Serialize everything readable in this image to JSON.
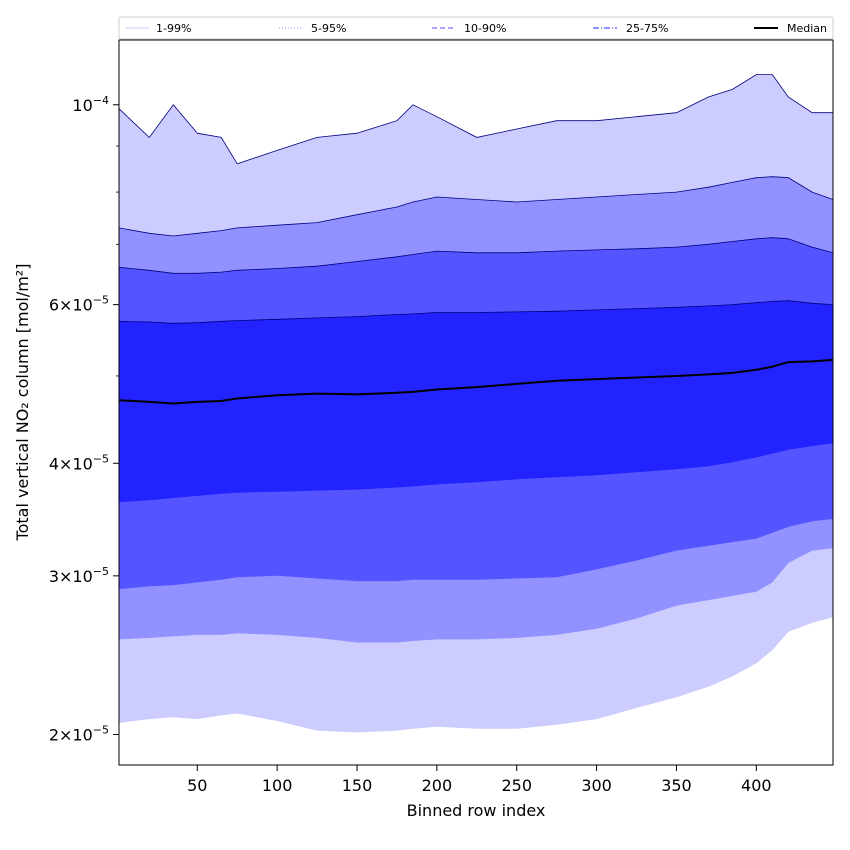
{
  "chart_data": {
    "type": "area",
    "title": "",
    "xlabel": "Binned row index",
    "ylabel": "Total vertical NO₂ column [mol/m²]",
    "xlim": [
      1,
      448
    ],
    "ylim": [
      1.85e-05,
      0.000118
    ],
    "yscale": "log",
    "grid": false,
    "legend_position": "top",
    "x_ticks": [
      50,
      100,
      150,
      200,
      250,
      300,
      350,
      400
    ],
    "x_tick_labels": [
      "50",
      "100",
      "150",
      "200",
      "250",
      "300",
      "350",
      "400"
    ],
    "y_ticks": [
      {
        "value": 2e-05,
        "mantissa": "2",
        "exponent": "−5"
      },
      {
        "value": 3e-05,
        "mantissa": "3",
        "exponent": "−5"
      },
      {
        "value": 4e-05,
        "mantissa": "4",
        "exponent": "−5"
      },
      {
        "value": 6e-05,
        "mantissa": "6",
        "exponent": "−5"
      },
      {
        "value": 0.0001,
        "mantissa": "",
        "exponent": "−4"
      }
    ],
    "y_minor_ticks": [
      5e-05,
      7e-05,
      8e-05,
      9e-05
    ],
    "x": [
      1,
      20,
      35,
      50,
      65,
      75,
      100,
      125,
      150,
      175,
      185,
      200,
      225,
      250,
      275,
      300,
      325,
      350,
      370,
      385,
      400,
      410,
      420,
      435,
      448
    ],
    "bands": [
      {
        "name": "1-99%",
        "color": "#ccccff",
        "lower": [
          2.06e-05,
          2.08e-05,
          2.09e-05,
          2.08e-05,
          2.1e-05,
          2.11e-05,
          2.07e-05,
          2.02e-05,
          2.01e-05,
          2.02e-05,
          2.03e-05,
          2.04e-05,
          2.03e-05,
          2.03e-05,
          2.05e-05,
          2.08e-05,
          2.14e-05,
          2.2e-05,
          2.26e-05,
          2.32e-05,
          2.4e-05,
          2.48e-05,
          2.6e-05,
          2.66e-05,
          2.7e-05
        ],
        "upper": [
          9.9e-05,
          9.2e-05,
          0.0001,
          9.3e-05,
          9.2e-05,
          8.6e-05,
          8.9e-05,
          9.2e-05,
          9.3e-05,
          9.6e-05,
          0.0001,
          9.7e-05,
          9.2e-05,
          9.4e-05,
          9.6e-05,
          9.6e-05,
          9.7e-05,
          9.8e-05,
          0.000102,
          0.000104,
          0.000108,
          0.000108,
          0.000102,
          9.8e-05,
          9.8e-05
        ]
      },
      {
        "name": "5-95%",
        "color": "#9191ff",
        "lower": [
          2.55e-05,
          2.56e-05,
          2.57e-05,
          2.58e-05,
          2.58e-05,
          2.59e-05,
          2.58e-05,
          2.56e-05,
          2.53e-05,
          2.53e-05,
          2.54e-05,
          2.55e-05,
          2.55e-05,
          2.56e-05,
          2.58e-05,
          2.62e-05,
          2.69e-05,
          2.78e-05,
          2.82e-05,
          2.85e-05,
          2.88e-05,
          2.95e-05,
          3.1e-05,
          3.2e-05,
          3.22e-05
        ],
        "upper": [
          7.3e-05,
          7.2e-05,
          7.15e-05,
          7.2e-05,
          7.25e-05,
          7.3e-05,
          7.35e-05,
          7.4e-05,
          7.55e-05,
          7.7e-05,
          7.8e-05,
          7.9e-05,
          7.85e-05,
          7.8e-05,
          7.85e-05,
          7.9e-05,
          7.95e-05,
          8e-05,
          8.1e-05,
          8.2e-05,
          8.3e-05,
          8.32e-05,
          8.3e-05,
          8e-05,
          7.85e-05
        ]
      },
      {
        "name": "10-90%",
        "color": "#5555ff",
        "lower": [
          2.9e-05,
          2.92e-05,
          2.93e-05,
          2.95e-05,
          2.97e-05,
          2.99e-05,
          3e-05,
          2.98e-05,
          2.96e-05,
          2.96e-05,
          2.97e-05,
          2.97e-05,
          2.97e-05,
          2.98e-05,
          2.99e-05,
          3.05e-05,
          3.12e-05,
          3.2e-05,
          3.24e-05,
          3.27e-05,
          3.3e-05,
          3.35e-05,
          3.4e-05,
          3.45e-05,
          3.47e-05
        ],
        "upper": [
          6.6e-05,
          6.55e-05,
          6.5e-05,
          6.5e-05,
          6.52e-05,
          6.55e-05,
          6.58e-05,
          6.62e-05,
          6.7e-05,
          6.78e-05,
          6.82e-05,
          6.88e-05,
          6.85e-05,
          6.85e-05,
          6.88e-05,
          6.9e-05,
          6.92e-05,
          6.95e-05,
          7e-05,
          7.05e-05,
          7.1e-05,
          7.12e-05,
          7.1e-05,
          6.95e-05,
          6.85e-05
        ]
      },
      {
        "name": "25-75%",
        "color": "#2323ff",
        "lower": [
          3.62e-05,
          3.64e-05,
          3.66e-05,
          3.68e-05,
          3.7e-05,
          3.71e-05,
          3.72e-05,
          3.73e-05,
          3.74e-05,
          3.76e-05,
          3.77e-05,
          3.79e-05,
          3.81e-05,
          3.84e-05,
          3.86e-05,
          3.88e-05,
          3.91e-05,
          3.94e-05,
          3.97e-05,
          4.01e-05,
          4.06e-05,
          4.1e-05,
          4.14e-05,
          4.18e-05,
          4.21e-05
        ],
        "upper": [
          5.75e-05,
          5.74e-05,
          5.72e-05,
          5.73e-05,
          5.75e-05,
          5.76e-05,
          5.78e-05,
          5.8e-05,
          5.82e-05,
          5.85e-05,
          5.86e-05,
          5.88e-05,
          5.88e-05,
          5.89e-05,
          5.9e-05,
          5.92e-05,
          5.94e-05,
          5.96e-05,
          5.98e-05,
          6e-05,
          6.03e-05,
          6.05e-05,
          6.06e-05,
          6.02e-05,
          6e-05
        ]
      }
    ],
    "median": {
      "name": "Median",
      "color": "#000000",
      "values": [
        4.7e-05,
        4.68e-05,
        4.66e-05,
        4.68e-05,
        4.69e-05,
        4.72e-05,
        4.76e-05,
        4.78e-05,
        4.77e-05,
        4.79e-05,
        4.8e-05,
        4.83e-05,
        4.86e-05,
        4.9e-05,
        4.94e-05,
        4.96e-05,
        4.98e-05,
        5e-05,
        5.02e-05,
        5.04e-05,
        5.08e-05,
        5.12e-05,
        5.18e-05,
        5.19e-05,
        5.21e-05
      ]
    },
    "legend": [
      {
        "label": "1-99%",
        "color": "#ccccff",
        "style": "solid"
      },
      {
        "label": "5-95%",
        "color": "#9191ff",
        "style": "dotted"
      },
      {
        "label": "10-90%",
        "color": "#5555ff",
        "style": "dashed"
      },
      {
        "label": "25-75%",
        "color": "#2323ff",
        "style": "dashdot"
      },
      {
        "label": "Median",
        "color": "#000000",
        "style": "solid-bold"
      }
    ]
  }
}
